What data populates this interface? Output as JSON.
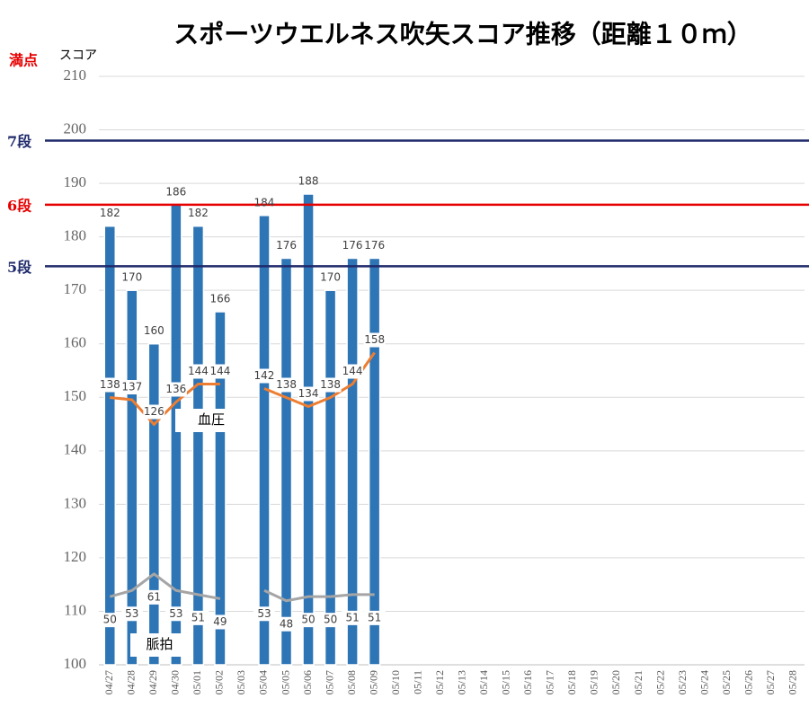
{
  "chart_data": {
    "type": "bar",
    "title": "スポーツウエルネス吹矢スコア推移（距離１０ｍ）",
    "y_label": "スコア",
    "max_label": "満点",
    "categories": [
      "04/27",
      "04/28",
      "04/29",
      "04/30",
      "05/01",
      "05/02",
      "05/03",
      "05/04",
      "05/05",
      "05/06",
      "05/07",
      "05/08",
      "05/09",
      "05/10",
      "05/11",
      "05/12",
      "05/13",
      "05/14",
      "05/15",
      "05/16",
      "05/17",
      "05/18",
      "05/19",
      "05/20",
      "05/21",
      "05/22",
      "05/23",
      "05/24",
      "05/25",
      "05/26",
      "05/27",
      "05/28"
    ],
    "series": [
      {
        "type": "bar",
        "color": "#2e75b6",
        "values": [
          182,
          170,
          160,
          186,
          182,
          166,
          null,
          184,
          176,
          188,
          170,
          176,
          176,
          null,
          null,
          null,
          null,
          null,
          null,
          null,
          null,
          null,
          null,
          null,
          null,
          null,
          null,
          null,
          null,
          null,
          null,
          null
        ]
      },
      {
        "type": "line",
        "axis": "y2",
        "color": "#ed7d31",
        "values": [
          138,
          137,
          126,
          136,
          144,
          144,
          null,
          142,
          138,
          134,
          138,
          144,
          158,
          null,
          null,
          null,
          null,
          null,
          null,
          null,
          null,
          null,
          null,
          null,
          null,
          null,
          null,
          null,
          null,
          null,
          null,
          null
        ]
      },
      {
        "type": "line",
        "axis": "y3",
        "color": "#a5a5a5",
        "values": [
          50,
          53,
          61,
          53,
          51,
          49,
          null,
          53,
          48,
          50,
          50,
          51,
          51,
          null,
          null,
          null,
          null,
          null,
          null,
          null,
          null,
          null,
          null,
          null,
          null,
          null,
          null,
          null,
          null,
          null,
          null,
          null
        ]
      }
    ],
    "ylim": [
      100,
      210
    ],
    "yticks": [
      100,
      110,
      120,
      130,
      140,
      150,
      160,
      170,
      180,
      190,
      200,
      210
    ],
    "y2lim": [
      19,
      281
    ],
    "y3lim": [
      17,
      302
    ],
    "grid": true,
    "reference_lines": [
      {
        "label": "7段",
        "value": 198,
        "color": "#1f2a6b"
      },
      {
        "label": "6段",
        "value": 186,
        "color": "#e60000"
      },
      {
        "label": "5段",
        "value": 174.5,
        "color": "#1f2a6b"
      }
    ],
    "annotations": [
      "血圧",
      "脈拍"
    ]
  }
}
